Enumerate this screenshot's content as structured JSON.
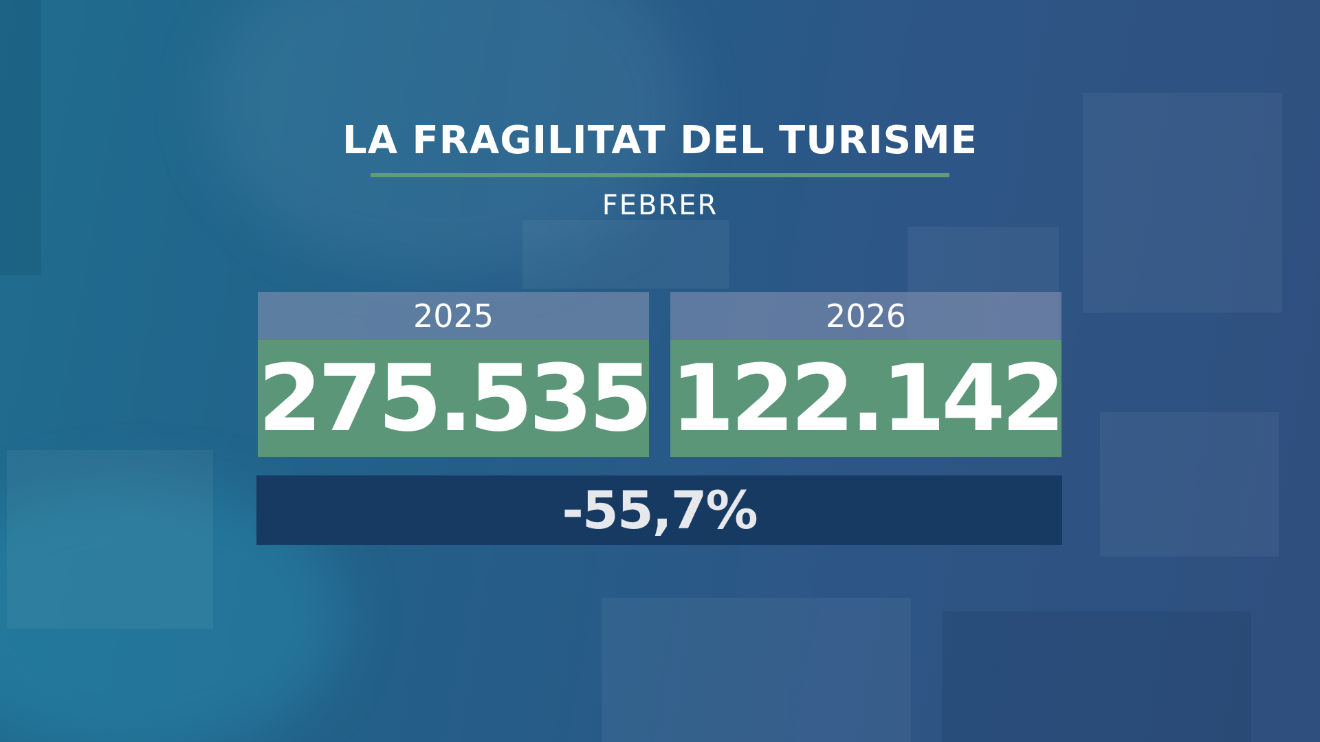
{
  "title": "LA FRAGILITAT DEL TURISME",
  "subtitle": "FEBRER",
  "panels": [
    {
      "year": "2025",
      "value": "275.535"
    },
    {
      "year": "2026",
      "value": "122.142"
    }
  ],
  "change": "-55,7%"
}
